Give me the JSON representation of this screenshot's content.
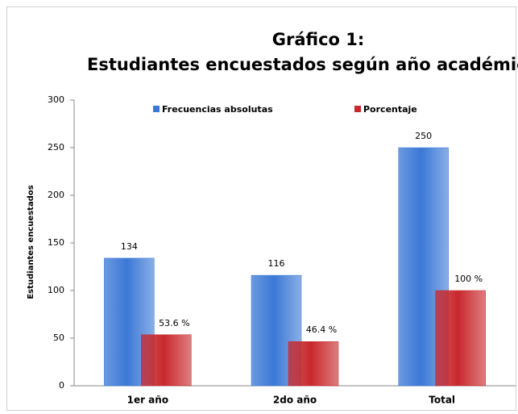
{
  "chart_data": {
    "type": "bar",
    "title": [
      "Gráfico  1:",
      "Estudiantes encuestados según año académico."
    ],
    "y_label": "Estudiantes  encuestados",
    "categories": [
      "1er año",
      "2do año",
      "Total"
    ],
    "series": [
      {
        "name": "Frecuencias absolutas",
        "color": "#3b78d6",
        "values": [
          134,
          116,
          250
        ]
      },
      {
        "name": "Porcentaje",
        "color": "#c8282c",
        "values": [
          53.6,
          46.4,
          100
        ],
        "value_labels": [
          "53.6 %",
          "46.4 %",
          "100 %"
        ]
      }
    ],
    "ylim": [
      0,
      300
    ],
    "yticks": [
      0,
      50,
      100,
      150,
      200,
      250,
      300
    ],
    "grid": false,
    "legend": "top"
  }
}
